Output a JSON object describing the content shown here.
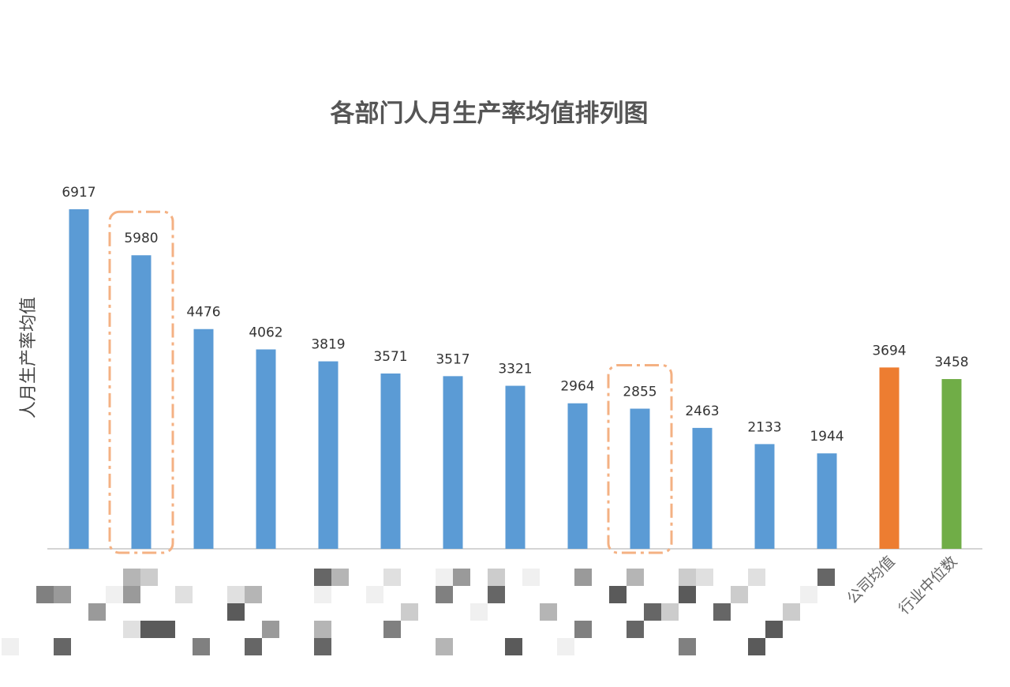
{
  "chart_data": {
    "type": "bar",
    "title": "各部门人月生产率均值排列图",
    "xlabel": "",
    "ylabel": "人月生产率均值",
    "categories": [
      "",
      "",
      "",
      "",
      "",
      "",
      "",
      "",
      "",
      "",
      "",
      "",
      "",
      "公司均值",
      "行业中位数"
    ],
    "values": [
      6917,
      5980,
      4476,
      4062,
      3819,
      3571,
      3517,
      3321,
      2964,
      2855,
      2463,
      2133,
      1944,
      3694,
      3458
    ],
    "bar_colors": [
      "#5b9bd5",
      "#5b9bd5",
      "#5b9bd5",
      "#5b9bd5",
      "#5b9bd5",
      "#5b9bd5",
      "#5b9bd5",
      "#5b9bd5",
      "#5b9bd5",
      "#5b9bd5",
      "#5b9bd5",
      "#5b9bd5",
      "#5b9bd5",
      "#ed7d31",
      "#70ad47"
    ],
    "ylim": [
      0,
      7000
    ],
    "grid": false,
    "legend": "none",
    "data_labels": true,
    "highlighted_indices": [
      1,
      9
    ],
    "highlight_color": "#f4b183",
    "category_labels_obscured": true
  }
}
